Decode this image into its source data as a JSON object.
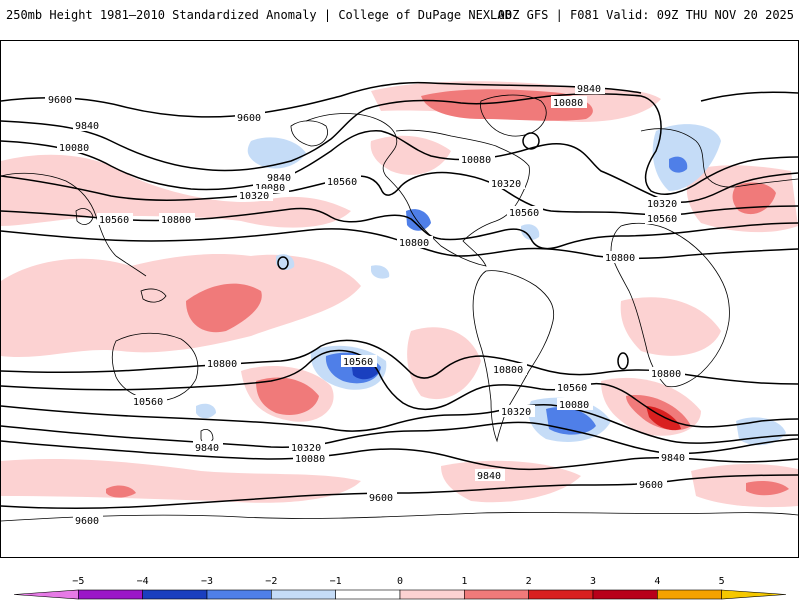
{
  "header": {
    "title": "250mb Height 1981–2010 Standardized Anomaly | College of DuPage NEXLAB",
    "run_info": "00Z GFS | F081 Valid: 09Z THU NOV 20 2025"
  },
  "contours": {
    "labels": [
      {
        "id": "n9600a",
        "text": "9600"
      },
      {
        "id": "n9600b",
        "text": "9600"
      },
      {
        "id": "n9840a",
        "text": "9840"
      },
      {
        "id": "n9840b",
        "text": "9840"
      },
      {
        "id": "n9840c",
        "text": "9840"
      },
      {
        "id": "n10080a",
        "text": "10080"
      },
      {
        "id": "n10080b",
        "text": "10080"
      },
      {
        "id": "n10080c",
        "text": "10080"
      },
      {
        "id": "n10080d",
        "text": "10080"
      },
      {
        "id": "n10320a",
        "text": "10320"
      },
      {
        "id": "n10320b",
        "text": "10320"
      },
      {
        "id": "n10320c",
        "text": "10320"
      },
      {
        "id": "n10560a",
        "text": "10560"
      },
      {
        "id": "n10560b",
        "text": "10560"
      },
      {
        "id": "n10560c",
        "text": "10560"
      },
      {
        "id": "n10560d",
        "text": "10560"
      },
      {
        "id": "n10800a",
        "text": "10800"
      },
      {
        "id": "n10800b",
        "text": "10800"
      },
      {
        "id": "n10800c",
        "text": "10800"
      },
      {
        "id": "s10800a",
        "text": "10800"
      },
      {
        "id": "s10800b",
        "text": "10800"
      },
      {
        "id": "s10800c",
        "text": "10800"
      },
      {
        "id": "s10560a",
        "text": "10560"
      },
      {
        "id": "s10560b",
        "text": "10560"
      },
      {
        "id": "s10560c",
        "text": "10560"
      },
      {
        "id": "s10320a",
        "text": "10320"
      },
      {
        "id": "s10320b",
        "text": "10320"
      },
      {
        "id": "s10080a",
        "text": "10080"
      },
      {
        "id": "s10080b",
        "text": "10080"
      },
      {
        "id": "s9840a",
        "text": "9840"
      },
      {
        "id": "s9840b",
        "text": "9840"
      },
      {
        "id": "s9840c",
        "text": "9840"
      },
      {
        "id": "s9600a",
        "text": "9600"
      },
      {
        "id": "s9600b",
        "text": "9600"
      },
      {
        "id": "s9600c",
        "text": "9600"
      }
    ]
  },
  "colorbar": {
    "ticks": [
      "−5",
      "−4",
      "−3",
      "−2",
      "−1",
      "0",
      "1",
      "2",
      "3",
      "4",
      "5"
    ],
    "colors": [
      "#e67ae6",
      "#9b16c8",
      "#1a3fbf",
      "#4f7fe8",
      "#c5dcf7",
      "#ffffff",
      "#fcd2d2",
      "#f07a7a",
      "#d92020",
      "#b8001a",
      "#f5a200",
      "#f5c800"
    ]
  }
}
